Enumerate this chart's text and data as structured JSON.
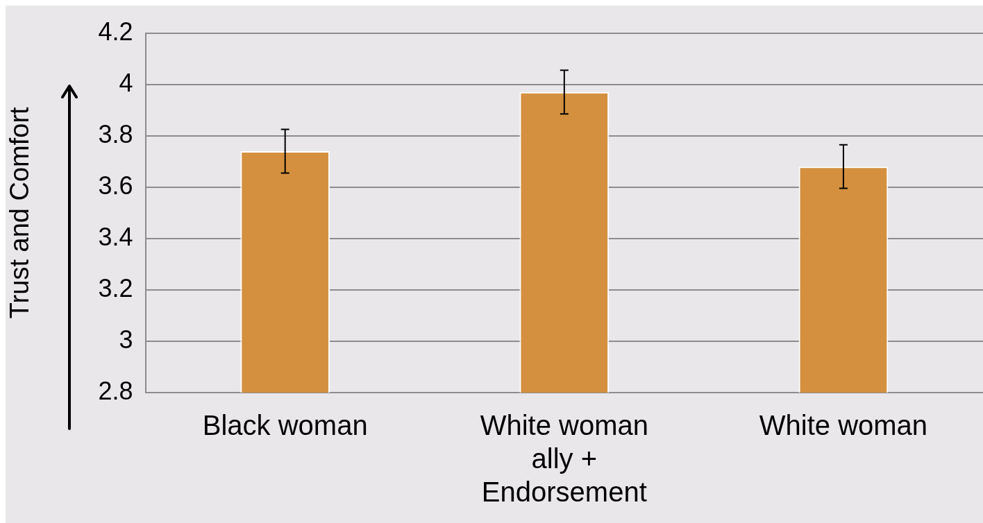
{
  "chart_data": {
    "type": "bar",
    "ylabel": "Trust and Comfort",
    "categories": [
      "Black woman",
      "White woman ally + Endorsement",
      "White woman"
    ],
    "values": [
      3.74,
      3.97,
      3.68
    ],
    "errors": [
      0.085,
      0.085,
      0.085
    ],
    "color": "#d4903f",
    "ylim": [
      2.8,
      4.2
    ],
    "yticks": [
      2.8,
      3,
      3.2,
      3.4,
      3.6,
      3.8,
      4,
      4.2
    ],
    "grid": "y",
    "legend": false
  }
}
